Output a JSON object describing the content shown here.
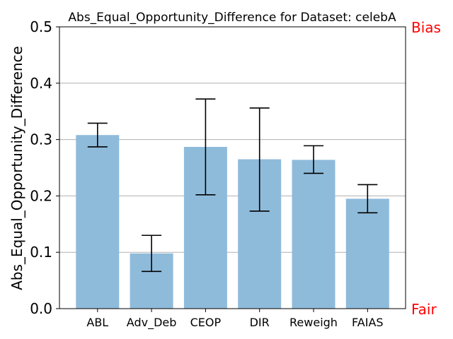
{
  "chart_data": {
    "type": "bar",
    "title": "Abs_Equal_Opportunity_Difference for Dataset: celebA",
    "xlabel": "",
    "ylabel": "Abs_Equal_Opportunity_Difference",
    "ylim": [
      0,
      0.5
    ],
    "yticks": [
      "0.0",
      "0.1",
      "0.2",
      "0.3",
      "0.4",
      "0.5"
    ],
    "grid": "horizontal",
    "categories": [
      "ABL",
      "Adv_Deb",
      "CEOP",
      "DIR",
      "Reweigh",
      "FAIAS"
    ],
    "values": [
      0.308,
      0.098,
      0.287,
      0.265,
      0.264,
      0.195
    ],
    "error_low": [
      0.287,
      0.066,
      0.202,
      0.173,
      0.24,
      0.17
    ],
    "error_high": [
      0.329,
      0.13,
      0.372,
      0.356,
      0.289,
      0.22
    ],
    "annotations": {
      "top": "Bias",
      "bottom": "Fair"
    },
    "colors": {
      "bar": "#8fbbdb",
      "error": "#000000",
      "grid": "#b0b0b0",
      "annotation": "#ff0000"
    }
  }
}
